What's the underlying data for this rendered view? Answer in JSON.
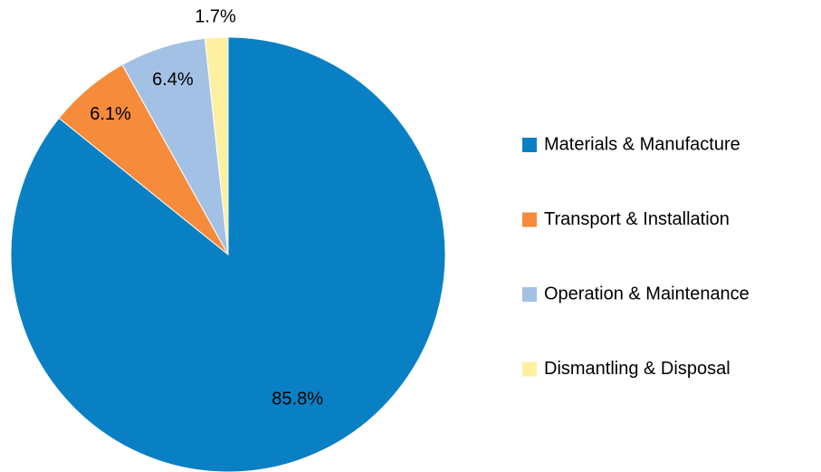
{
  "chart_data": {
    "type": "pie",
    "categories": [
      "Materials & Manufacture",
      "Transport & Installation",
      "Operation & Maintenance",
      "Dismantling & Disposal"
    ],
    "values": [
      85.8,
      6.1,
      6.4,
      1.7
    ],
    "value_labels": [
      "85.8%",
      "6.1%",
      "6.4%",
      "1.7%"
    ],
    "colors": [
      "#0a80c4",
      "#f68b3b",
      "#a3c1e4",
      "#fdf0a0"
    ],
    "legend": "right"
  }
}
